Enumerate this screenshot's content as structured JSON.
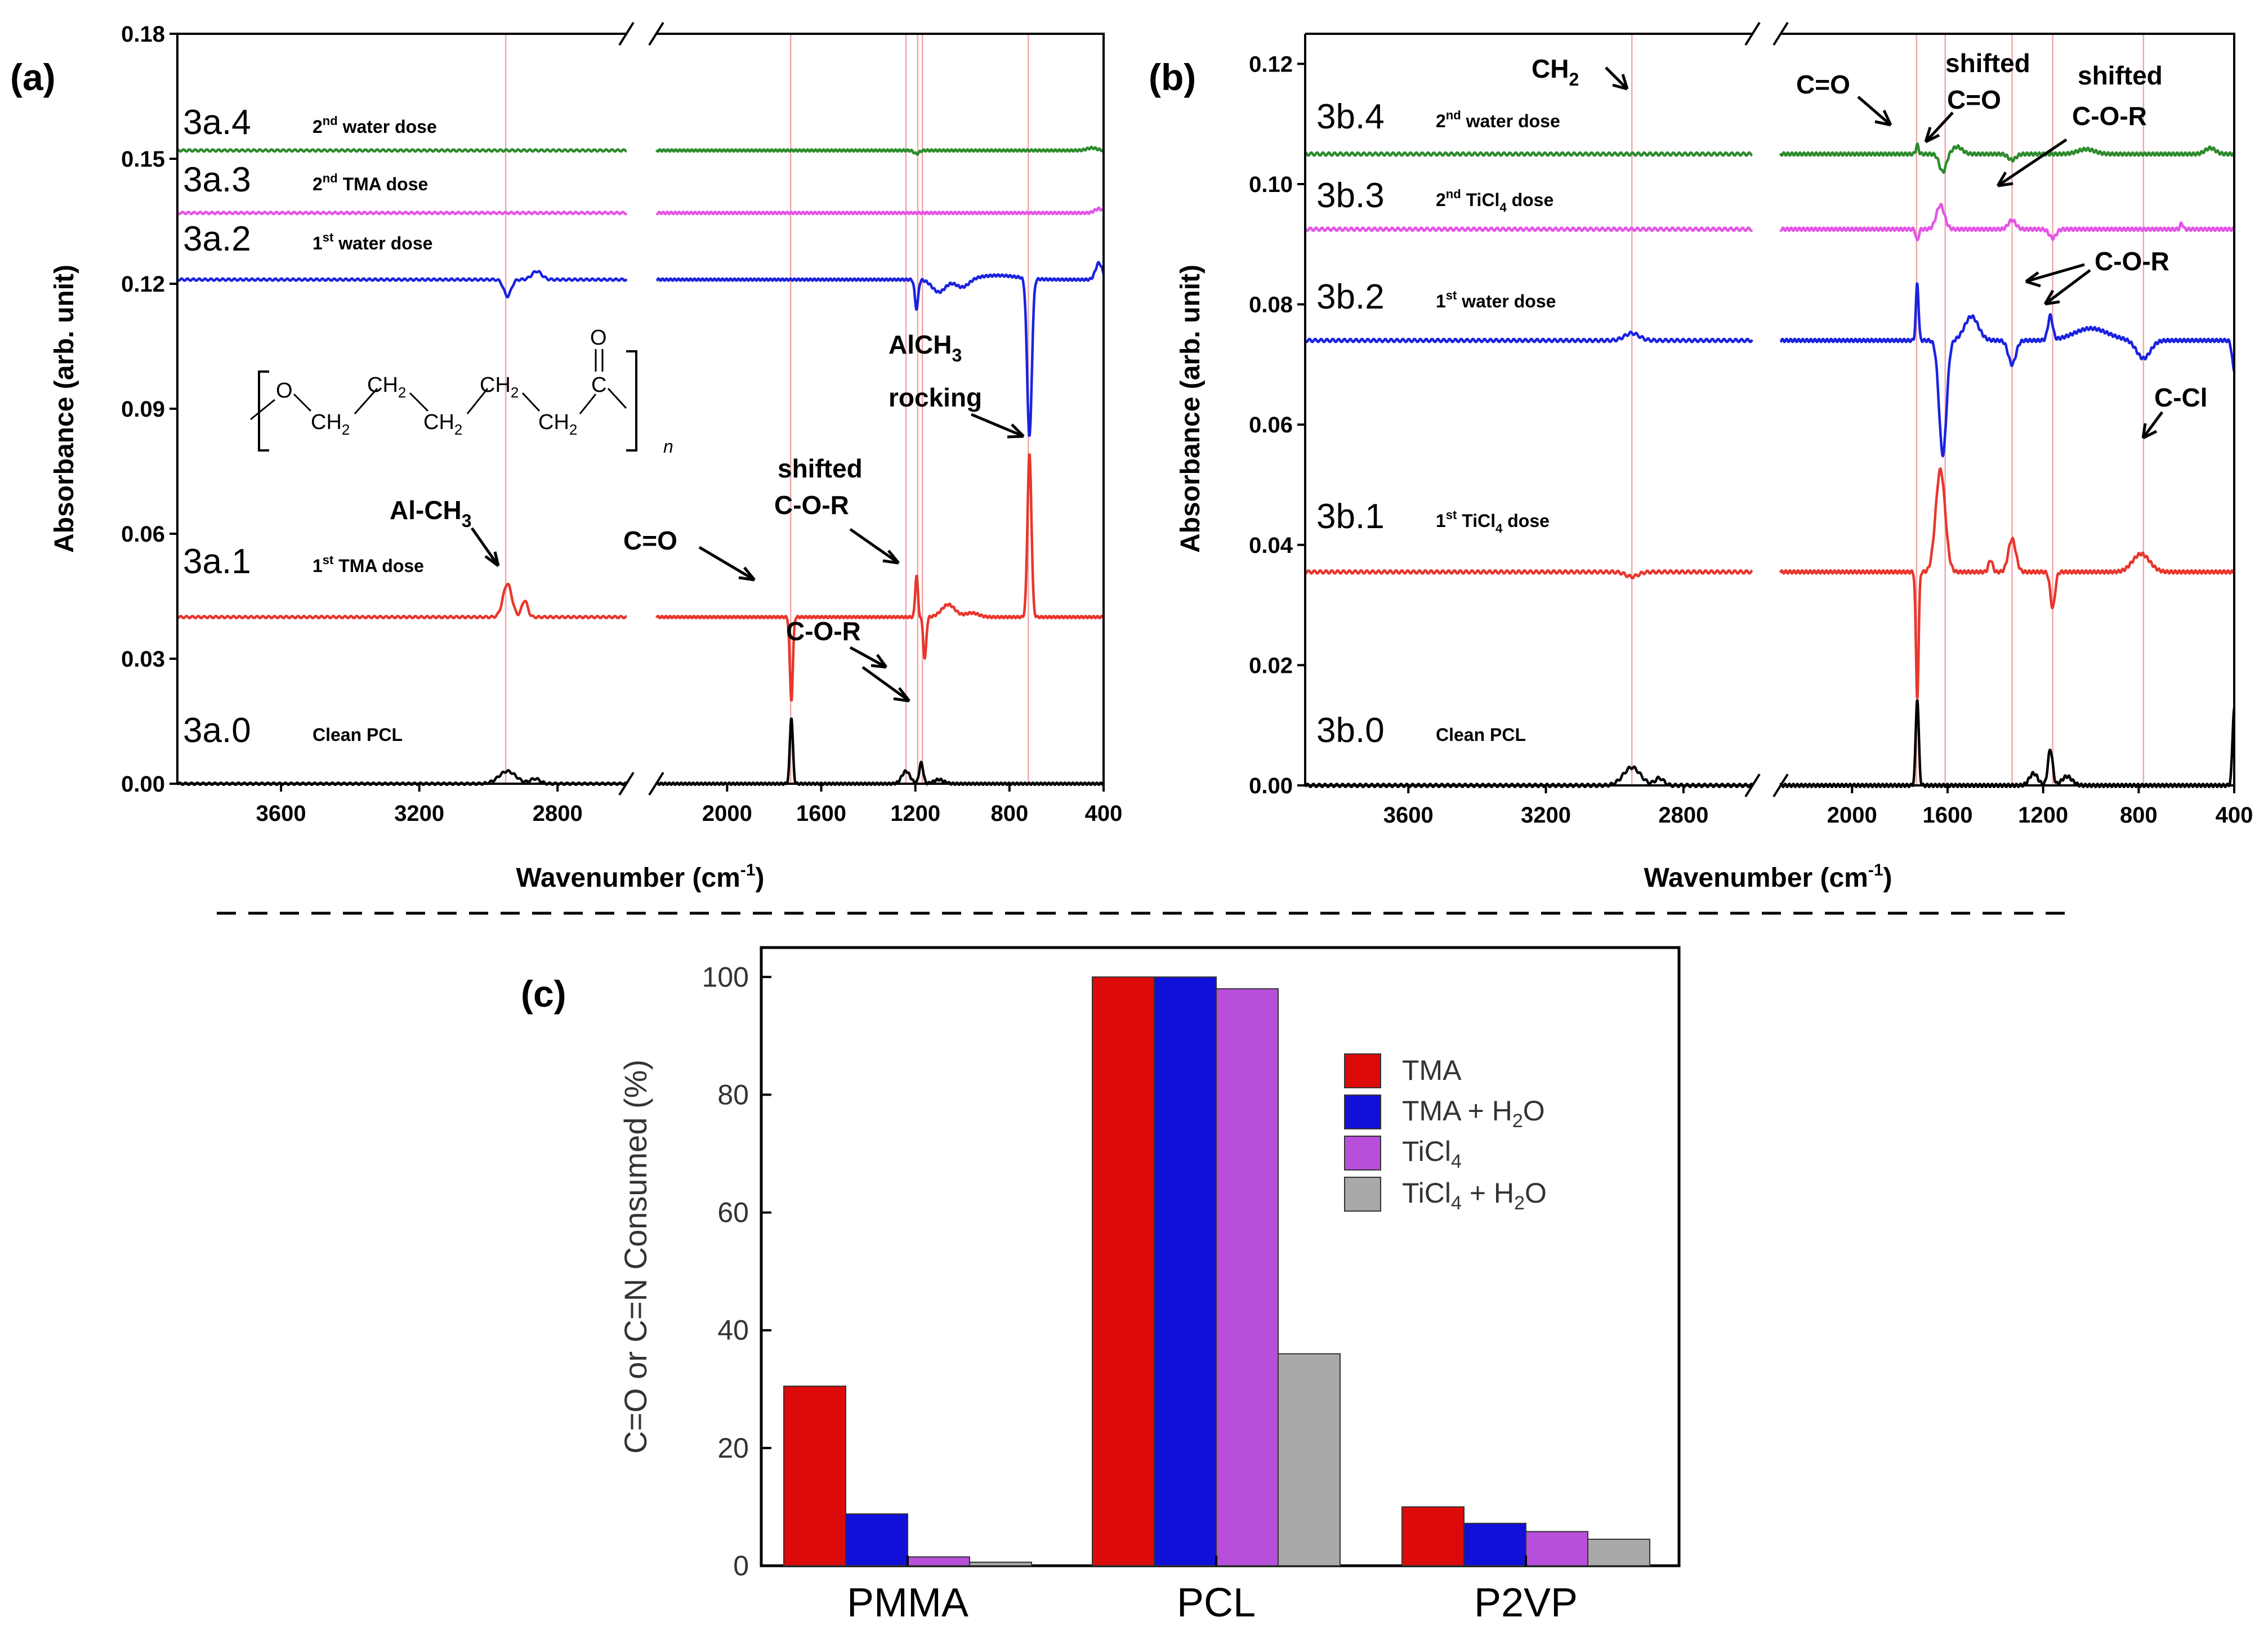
{
  "panel_labels": {
    "a": "(a)",
    "b": "(b)",
    "c": "(c)"
  },
  "colors": {
    "trace0": "#000000",
    "trace1": "#e8362c",
    "trace2": "#1a22e0",
    "trace3": "#e455e6",
    "trace4": "#2e8b2e",
    "guide": "#f2a8a8",
    "bar_tma": "#dd0a0a",
    "bar_tma_h2o": "#1010d8",
    "bar_ticl4": "#b84fdb",
    "bar_ticl4_h2o": "#a9a9a9"
  },
  "chart_data": [
    {
      "id": "a",
      "type": "line",
      "title": "",
      "xlabel": "Wavenumber (cm",
      "xlabel_sup": "-1",
      "xlabel_end": ")",
      "ylabel": "Absorbance (arb. unit)",
      "ylim": [
        0,
        0.18
      ],
      "yticks": [
        "0.00",
        "0.03",
        "0.06",
        "0.09",
        "0.12",
        "0.15",
        "0.18"
      ],
      "x_left_segment": [
        3900,
        2600
      ],
      "x_right_segment": [
        2300,
        400
      ],
      "xticks": [
        "3600",
        "3200",
        "2800",
        "2000",
        "1600",
        "1200",
        "800",
        "400"
      ],
      "guides": [
        2950,
        1730,
        1240,
        1190,
        1170,
        720
      ],
      "series": [
        {
          "name": "3a.0",
          "note": "Clean PCL",
          "offset": 0.0,
          "color_key": "trace0"
        },
        {
          "name": "3a.1",
          "note": "1",
          "note_sup": "st",
          "note_end": " TMA dose",
          "offset": 0.04,
          "color_key": "trace1"
        },
        {
          "name": "3a.2",
          "note": "1",
          "note_sup": "st",
          "note_end": " water dose",
          "offset": 0.121,
          "color_key": "trace2"
        },
        {
          "name": "3a.3",
          "note": "2",
          "note_sup": "nd",
          "note_end": " TMA dose",
          "offset": 0.137,
          "color_key": "trace3"
        },
        {
          "name": "3a.4",
          "note": "2",
          "note_sup": "nd",
          "note_end": " water dose",
          "offset": 0.152,
          "color_key": "trace4"
        }
      ],
      "annotations": [
        "Al-CH",
        "3",
        "C=O",
        "shifted",
        "C-O-R",
        "C-O-R",
        "AlCH",
        "3",
        "rocking"
      ],
      "structure": {
        "o": "O",
        "ch2": "CH",
        "two": "2",
        "c": "C",
        "n": "n"
      }
    },
    {
      "id": "b",
      "type": "line",
      "title": "",
      "xlabel": "Wavenumber (cm",
      "xlabel_sup": "-1",
      "xlabel_end": ")",
      "ylabel": "Absorbance (arb. unit)",
      "ylim": [
        0,
        0.125
      ],
      "yticks": [
        "0.00",
        "0.02",
        "0.04",
        "0.06",
        "0.08",
        "0.10",
        "0.12"
      ],
      "x_left_segment": [
        3900,
        2600
      ],
      "x_right_segment": [
        2300,
        400
      ],
      "xticks": [
        "3600",
        "3200",
        "2800",
        "2000",
        "1600",
        "1200",
        "800",
        "400"
      ],
      "guides": [
        2950,
        1730,
        1610,
        1330,
        1160,
        780
      ],
      "series": [
        {
          "name": "3b.0",
          "note": "Clean PCL",
          "offset": 0.0,
          "color_key": "trace0"
        },
        {
          "name": "3b.1",
          "note": "1",
          "note_sup": "st",
          "note_end": " TiCl",
          "note_sub": "4",
          "note_tail": " dose",
          "offset": 0.0355,
          "color_key": "trace1"
        },
        {
          "name": "3b.2",
          "note": "1",
          "note_sup": "st",
          "note_end": " water dose",
          "offset": 0.074,
          "color_key": "trace2"
        },
        {
          "name": "3b.3",
          "note": "2",
          "note_sup": "nd",
          "note_end": " TiCl",
          "note_sub": "4",
          "note_tail": " dose",
          "offset": 0.0925,
          "color_key": "trace3"
        },
        {
          "name": "3b.4",
          "note": "2",
          "note_sup": "nd",
          "note_end": " water dose",
          "offset": 0.105,
          "color_key": "trace4"
        }
      ],
      "annotations": [
        "CH",
        "2",
        "C=O",
        "shifted",
        "C=O",
        "shifted",
        "C-O-R",
        "C-O-R",
        "C-Cl"
      ]
    },
    {
      "id": "c",
      "type": "bar",
      "title": "",
      "xlabel": "",
      "ylabel": "C=O or C=N Consumed (%)",
      "ylim": [
        0,
        100
      ],
      "yticks": [
        "0",
        "20",
        "40",
        "60",
        "80",
        "100"
      ],
      "categories": [
        "PMMA",
        "PCL",
        "P2VP"
      ],
      "series": [
        {
          "name": "TMA",
          "legend": "TMA",
          "values": [
            30.5,
            100,
            10
          ],
          "color_key": "bar_tma"
        },
        {
          "name": "TMA + H2O",
          "legend": "TMA + H",
          "legend_sub": "2",
          "legend_end": "O",
          "values": [
            8.8,
            100,
            7.2
          ],
          "color_key": "bar_tma_h2o"
        },
        {
          "name": "TiCl4",
          "legend": "TiCl",
          "legend_sub": "4",
          "legend_end": "",
          "values": [
            1.5,
            98,
            5.8
          ],
          "color_key": "bar_ticl4"
        },
        {
          "name": "TiCl4 + H2O",
          "legend": "TiCl",
          "legend_sub": "4",
          "legend_end": " + H",
          "legend_sub2": "2",
          "legend_end2": "O",
          "values": [
            0.6,
            36,
            4.5
          ],
          "color_key": "bar_ticl4_h2o"
        }
      ],
      "legend_position": "top-right"
    }
  ]
}
